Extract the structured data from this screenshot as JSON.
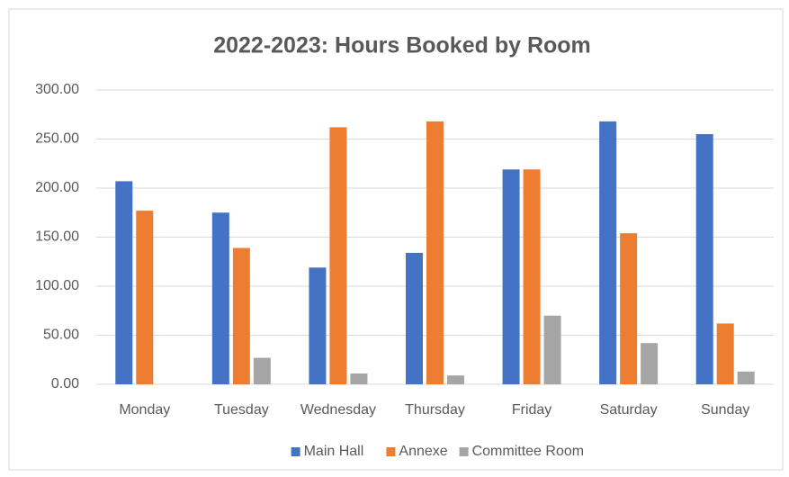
{
  "chart_data": {
    "type": "bar",
    "title": "2022-2023: Hours Booked by Room",
    "categories": [
      "Monday",
      "Tuesday",
      "Wednesday",
      "Thursday",
      "Friday",
      "Saturday",
      "Sunday"
    ],
    "series": [
      {
        "name": "Main Hall",
        "color": "#4472c4",
        "values": [
          207,
          175,
          119,
          134,
          219,
          268,
          255
        ]
      },
      {
        "name": "Annexe",
        "color": "#ed7d31",
        "values": [
          177,
          139,
          262,
          268,
          219,
          154,
          62
        ]
      },
      {
        "name": "Committee Room",
        "color": "#a5a5a5",
        "values": [
          0,
          27,
          11,
          9,
          70,
          42,
          13
        ]
      }
    ],
    "ylim": [
      0,
      300
    ],
    "yticks": [
      {
        "value": 0,
        "label": "0.00"
      },
      {
        "value": 50,
        "label": "50.00"
      },
      {
        "value": 100,
        "label": "100.00"
      },
      {
        "value": 150,
        "label": "150.00"
      },
      {
        "value": 200,
        "label": "200.00"
      },
      {
        "value": 250,
        "label": "250.00"
      },
      {
        "value": 300,
        "label": "300.00"
      }
    ],
    "grid": true,
    "legend": "bottom"
  }
}
